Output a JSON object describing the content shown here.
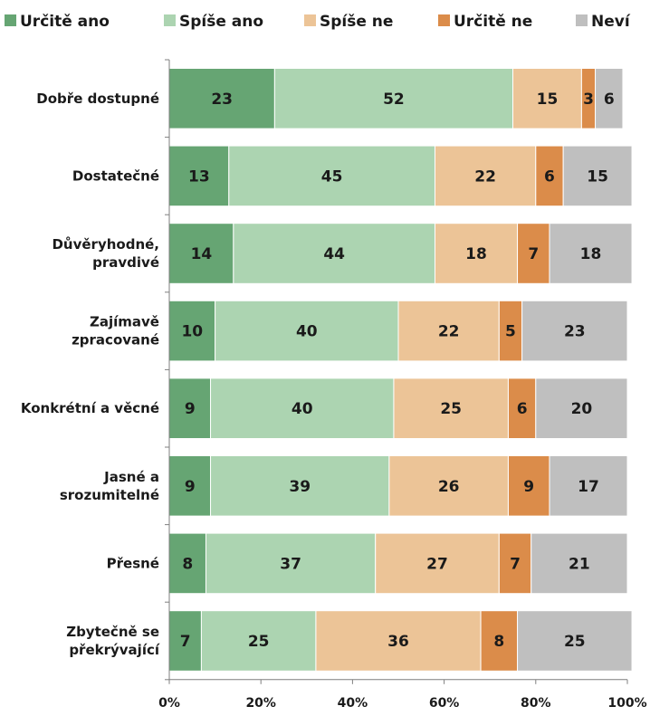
{
  "chart_data": {
    "type": "bar",
    "orientation": "horizontal",
    "stacked": true,
    "percent": true,
    "title": "",
    "xlabel": "",
    "ylabel": "",
    "xlim": [
      0,
      100
    ],
    "x_ticks": [
      "0%",
      "20%",
      "40%",
      "60%",
      "80%",
      "100%"
    ],
    "legend_position": "top",
    "grid": false,
    "categories": [
      [
        "Dobře dostupné"
      ],
      [
        "Dostatečné"
      ],
      [
        "Důvěryhodné,",
        "pravdivé"
      ],
      [
        "Zajímavě",
        "zpracované"
      ],
      [
        "Konkrétní a věcné"
      ],
      [
        "Jasné a",
        "srozumitelné"
      ],
      [
        "Přesné"
      ],
      [
        "Zbytečně se",
        "překrývající"
      ]
    ],
    "series": [
      {
        "name": "Určitě ano",
        "color": "#66a573",
        "values": [
          23,
          13,
          14,
          10,
          9,
          9,
          8,
          7
        ]
      },
      {
        "name": "Spíše ano",
        "color": "#acd4b1",
        "values": [
          52,
          45,
          44,
          40,
          40,
          39,
          37,
          25
        ]
      },
      {
        "name": "Spíše ne",
        "color": "#ecc497",
        "values": [
          15,
          22,
          18,
          22,
          25,
          26,
          27,
          36
        ]
      },
      {
        "name": "Určitě ne",
        "color": "#db8c4a",
        "values": [
          3,
          6,
          7,
          5,
          6,
          9,
          7,
          8
        ]
      },
      {
        "name": "Neví",
        "color": "#bfbfbf",
        "values": [
          6,
          15,
          18,
          23,
          20,
          17,
          21,
          25
        ]
      }
    ]
  }
}
